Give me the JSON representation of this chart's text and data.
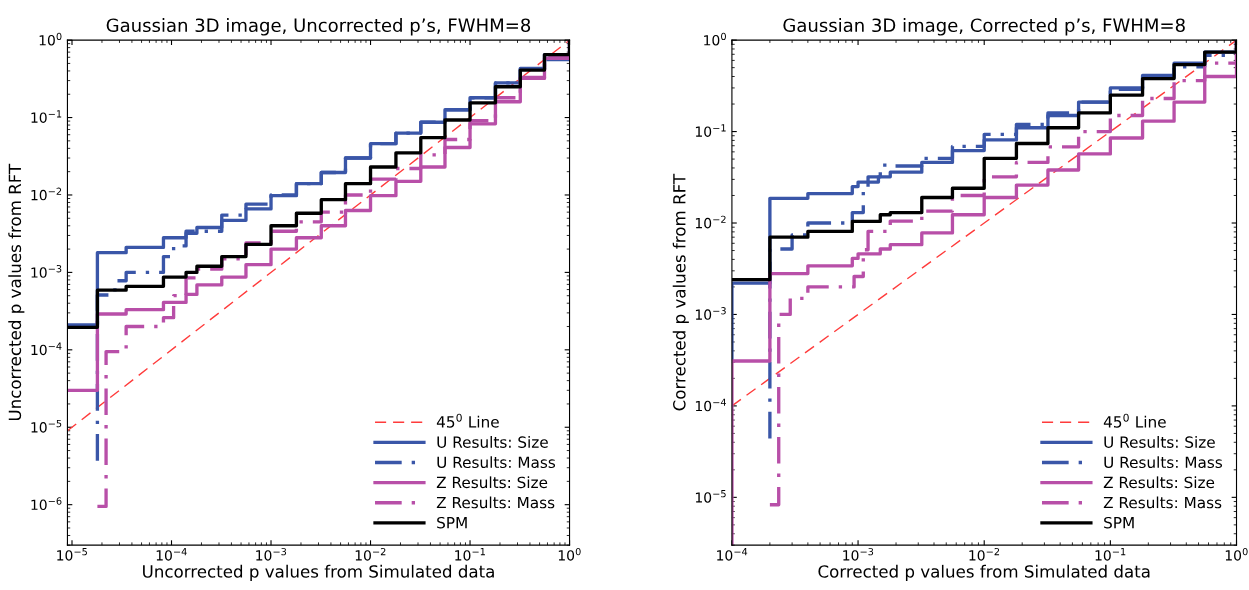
{
  "chart_data": [
    {
      "type": "step",
      "title": "Gaussian 3D image, Uncorrected p’s, FWHM=8",
      "xlabel": "Uncorrected p values from Simulated data",
      "ylabel": "Uncorrected p values from RFT",
      "log": "xy",
      "grid": false,
      "legend": "bottom right",
      "xlim": [
        9e-06,
        1
      ],
      "ylim": [
        3e-07,
        1
      ],
      "xticks": [
        {
          "value": 1e-05,
          "label": "10$^{−5}$"
        },
        {
          "value": 0.0001,
          "label": "10$^{−4}$"
        },
        {
          "value": 0.001,
          "label": "10$^{−3}$"
        },
        {
          "value": 0.01,
          "label": "10$^{−2}$"
        },
        {
          "value": 0.1,
          "label": "10$^{−1}$"
        },
        {
          "value": 1,
          "label": "10$^{0}$"
        }
      ],
      "yticks": [
        {
          "value": 1e-06,
          "label": "10$^{−6}$"
        },
        {
          "value": 1e-05,
          "label": "10$^{−5}$"
        },
        {
          "value": 0.0001,
          "label": "10$^{−4}$"
        },
        {
          "value": 0.001,
          "label": "10$^{−3}$"
        },
        {
          "value": 0.01,
          "label": "10$^{−2}$"
        },
        {
          "value": 0.1,
          "label": "10$^{−1}$"
        },
        {
          "value": 1,
          "label": "10$^{0}$"
        }
      ],
      "series": [
        {
          "name": "45$^{0}$ Line",
          "type": "line",
          "line_style": "dashed",
          "color": "#ff3b3b",
          "x": [
            9e-06,
            1
          ],
          "values": [
            9e-06,
            1
          ]
        },
        {
          "name": "U Results: Size",
          "line_style": "solid",
          "color": "#3a56a8",
          "x": [
            9e-06,
            1.8e-05,
            3.5e-05,
            8.3e-05,
            0.00014,
            0.00018,
            0.00032,
            0.00056,
            0.001,
            0.0018,
            0.0032,
            0.0056,
            0.01,
            0.018,
            0.032,
            0.056,
            0.1,
            0.18,
            0.32,
            0.56,
            1
          ],
          "values": [
            0.00021,
            0.0018,
            0.0021,
            0.0028,
            0.0032,
            0.0038,
            0.0047,
            0.0066,
            0.0098,
            0.014,
            0.0195,
            0.03,
            0.046,
            0.063,
            0.087,
            0.126,
            0.18,
            0.28,
            0.43,
            0.65,
            1
          ]
        },
        {
          "name": "U Results: Mass",
          "line_style": "dashdot",
          "color": "#3a56a8",
          "x": [
            1.8e-05,
            1.8e-05,
            2.7e-05,
            3.5e-05,
            8.3e-05,
            0.000105,
            0.00014,
            0.00032,
            0.00056,
            0.001,
            0.0018,
            0.0032,
            0.0056,
            0.01,
            0.018,
            0.032,
            0.056,
            0.1,
            0.18,
            0.32,
            0.56,
            1
          ],
          "values": [
            3.7e-06,
            0.00051,
            0.00078,
            0.001,
            0.0016,
            0.0022,
            0.0034,
            0.0055,
            0.0076,
            0.01,
            0.014,
            0.0195,
            0.03,
            0.046,
            0.063,
            0.087,
            0.126,
            0.18,
            0.28,
            0.42,
            0.56,
            1
          ]
        },
        {
          "name": "Z Results: Size",
          "line_style": "solid",
          "color": "#b84fa8",
          "x": [
            9e-06,
            1.8e-05,
            3.5e-05,
            8.3e-05,
            0.00014,
            0.00018,
            0.00032,
            0.00056,
            0.001,
            0.0018,
            0.0032,
            0.0056,
            0.01,
            0.018,
            0.032,
            0.056,
            0.1,
            0.18,
            0.32,
            0.56,
            1
          ],
          "values": [
            3e-05,
            0.00029,
            0.00033,
            0.00041,
            0.00052,
            0.00069,
            0.00087,
            0.00126,
            0.002,
            0.0028,
            0.004,
            0.0063,
            0.0098,
            0.015,
            0.023,
            0.041,
            0.083,
            0.16,
            0.32,
            0.58,
            1
          ]
        },
        {
          "name": "Z Results: Mass",
          "line_style": "dashdot",
          "color": "#b84fa8",
          "x": [
            1.8e-05,
            2.2e-05,
            3.5e-05,
            8.3e-05,
            0.000105,
            0.00014,
            0.00018,
            0.00032,
            0.00056,
            0.001,
            0.0018,
            0.0032,
            0.0056,
            0.01,
            0.018,
            0.032,
            0.056,
            0.1,
            0.18,
            0.32,
            0.56,
            1
          ],
          "values": [
            9.5e-07,
            9.5e-05,
            0.0002,
            0.00026,
            0.0005,
            0.00085,
            0.0011,
            0.0015,
            0.0024,
            0.0034,
            0.0045,
            0.006,
            0.01,
            0.016,
            0.022,
            0.033,
            0.052,
            0.091,
            0.18,
            0.33,
            0.6,
            1
          ]
        },
        {
          "name": "SPM",
          "line_style": "solid",
          "color": "#000000",
          "x": [
            9e-06,
            1.8e-05,
            3.5e-05,
            8.3e-05,
            0.00014,
            0.00018,
            0.00032,
            0.00056,
            0.001,
            0.0018,
            0.0032,
            0.0056,
            0.01,
            0.018,
            0.032,
            0.056,
            0.1,
            0.18,
            0.32,
            0.56,
            1
          ],
          "values": [
            0.000195,
            0.00059,
            0.00066,
            0.00087,
            0.001,
            0.0012,
            0.0016,
            0.0023,
            0.004,
            0.0058,
            0.0087,
            0.014,
            0.023,
            0.035,
            0.055,
            0.093,
            0.155,
            0.25,
            0.41,
            0.65,
            1
          ]
        }
      ]
    },
    {
      "type": "step",
      "title": "Gaussian 3D image, Corrected p’s, FWHM=8",
      "xlabel": "Corrected p values from Simulated data",
      "ylabel": "Corrected p values from RFT",
      "log": "xy",
      "grid": false,
      "legend": "bottom right",
      "xlim": [
        0.0001,
        1
      ],
      "ylim": [
        3e-06,
        1
      ],
      "xticks": [
        {
          "value": 0.0001,
          "label": "10$^{−4}$"
        },
        {
          "value": 0.001,
          "label": "10$^{−3}$"
        },
        {
          "value": 0.01,
          "label": "10$^{−2}$"
        },
        {
          "value": 0.1,
          "label": "10$^{−1}$"
        },
        {
          "value": 1,
          "label": "10$^{0}$"
        }
      ],
      "yticks": [
        {
          "value": 1e-05,
          "label": "10$^{−5}$"
        },
        {
          "value": 0.0001,
          "label": "10$^{−4}$"
        },
        {
          "value": 0.001,
          "label": "10$^{−3}$"
        },
        {
          "value": 0.01,
          "label": "10$^{−2}$"
        },
        {
          "value": 0.1,
          "label": "10$^{−1}$"
        },
        {
          "value": 1,
          "label": "10$^{0}$"
        }
      ],
      "series": [
        {
          "name": "45$^{0}$ Line",
          "type": "line",
          "line_style": "dashed",
          "color": "#ff3b3b",
          "x": [
            0.0001,
            1
          ],
          "values": [
            0.0001,
            1
          ]
        },
        {
          "name": "U Results: Size",
          "line_style": "solid",
          "color": "#3a56a8",
          "x": [
            0.0001,
            0.0001,
            0.0002,
            0.0004,
            0.0009,
            0.001,
            0.00145,
            0.0018,
            0.0032,
            0.0056,
            0.01,
            0.018,
            0.032,
            0.056,
            0.1,
            0.18,
            0.32,
            0.56,
            1
          ],
          "values": [
            0.00032,
            0.0022,
            0.0186,
            0.021,
            0.025,
            0.028,
            0.032,
            0.036,
            0.046,
            0.062,
            0.081,
            0.11,
            0.15,
            0.21,
            0.3,
            0.41,
            0.56,
            0.74,
            1
          ]
        },
        {
          "name": "U Results: Mass",
          "line_style": "dashdot",
          "color": "#3a56a8",
          "x": [
            0.0002,
            0.0002,
            0.0003,
            0.0004,
            0.0009,
            0.0011,
            0.0012,
            0.0015,
            0.0018,
            0.0032,
            0.0056,
            0.01,
            0.018,
            0.032,
            0.056,
            0.1,
            0.18,
            0.32,
            0.56,
            1
          ],
          "values": [
            4.4e-05,
            0.0052,
            0.0074,
            0.01,
            0.013,
            0.023,
            0.032,
            0.043,
            0.042,
            0.051,
            0.069,
            0.093,
            0.12,
            0.16,
            0.21,
            0.29,
            0.39,
            0.51,
            0.68,
            1
          ]
        },
        {
          "name": "Z Results: Size",
          "line_style": "solid",
          "color": "#b84fa8",
          "x": [
            0.0001,
            0.0001,
            0.0002,
            0.0004,
            0.0009,
            0.001,
            0.0015,
            0.0018,
            0.0032,
            0.0056,
            0.01,
            0.018,
            0.032,
            0.056,
            0.1,
            0.18,
            0.32,
            0.56,
            1
          ],
          "values": [
            3e-06,
            0.00031,
            0.0028,
            0.0034,
            0.0041,
            0.0046,
            0.0052,
            0.0058,
            0.0078,
            0.0123,
            0.019,
            0.026,
            0.038,
            0.057,
            0.085,
            0.13,
            0.21,
            0.4,
            1
          ]
        },
        {
          "name": "Z Results: Mass",
          "line_style": "dashdot",
          "color": "#b84fa8",
          "x": [
            0.0002,
            0.000235,
            0.00029,
            0.0004,
            0.00093,
            0.0011,
            0.0012,
            0.0018,
            0.0032,
            0.0056,
            0.01,
            0.018,
            0.032,
            0.056,
            0.1,
            0.18,
            0.32,
            0.56,
            1
          ],
          "values": [
            8.3e-06,
            0.001,
            0.0015,
            0.002,
            0.0026,
            0.0051,
            0.0081,
            0.0105,
            0.0135,
            0.02,
            0.032,
            0.046,
            0.068,
            0.1,
            0.15,
            0.23,
            0.36,
            0.56,
            1
          ]
        },
        {
          "name": "SPM",
          "line_style": "solid",
          "color": "#000000",
          "x": [
            0.0001,
            0.0002,
            0.0004,
            0.0009,
            0.0015,
            0.0018,
            0.0032,
            0.0056,
            0.01,
            0.018,
            0.032,
            0.056,
            0.1,
            0.18,
            0.32,
            0.56,
            1
          ],
          "values": [
            0.0024,
            0.007,
            0.0081,
            0.0104,
            0.0123,
            0.013,
            0.019,
            0.024,
            0.051,
            0.074,
            0.11,
            0.16,
            0.25,
            0.38,
            0.54,
            0.74,
            1
          ]
        }
      ]
    }
  ]
}
